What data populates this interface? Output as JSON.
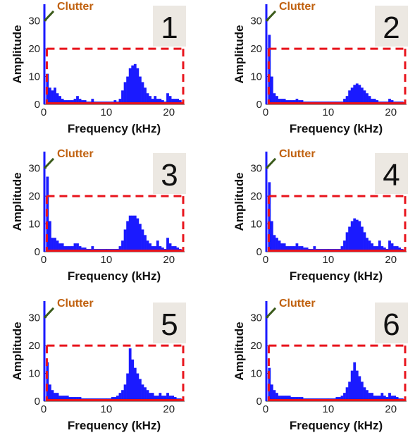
{
  "colors": {
    "bar": "#1a1aff",
    "clutter_line": "#1a1aff",
    "red": "#e8141c",
    "clutter_text": "#c0600e",
    "clutter_arrow": "#3a5a1a",
    "label_box": "#ece8e2"
  },
  "chart_data": [
    {
      "type": "bar",
      "panel_label": "1",
      "xlabel": "Frequency (kHz)",
      "ylabel": "Amplitude",
      "xlim": [
        0,
        22.5
      ],
      "ylim": [
        0,
        36
      ],
      "xticks": [
        0,
        10,
        20
      ],
      "yticks": [
        0,
        10,
        20,
        30
      ],
      "annotation": "Clutter",
      "clutter_amplitude": 36,
      "box_top": 20,
      "series": [
        {
          "x": [
            0.6,
            1.0,
            1.4,
            1.8,
            2.2,
            2.6,
            3.0,
            3.4,
            3.8,
            4.2,
            4.6,
            5.0,
            5.4,
            5.8,
            6.2,
            6.6,
            7.0,
            7.4,
            7.8,
            8.2,
            8.6,
            9.0,
            9.4,
            9.8,
            10.2,
            10.6,
            11.0,
            11.4,
            11.8,
            12.2,
            12.6,
            13.0,
            13.4,
            13.8,
            14.2,
            14.6,
            15.0,
            15.4,
            15.8,
            16.2,
            16.6,
            17.0,
            17.4,
            17.8,
            18.2,
            18.6,
            19.0,
            19.4,
            19.8,
            20.2,
            20.6,
            21.0,
            21.4,
            21.8
          ],
          "values": [
            11,
            6,
            5,
            6,
            4,
            3,
            2,
            1.5,
            1.5,
            1.5,
            1.5,
            2,
            3,
            2,
            1.5,
            1.5,
            1,
            1,
            2,
            1,
            1,
            1,
            1,
            1,
            1,
            1,
            1,
            1.5,
            1,
            2,
            5,
            8,
            10,
            13,
            14,
            14.5,
            13,
            10,
            8,
            6,
            4,
            3,
            2,
            3,
            2,
            2,
            1.5,
            1,
            4,
            3,
            2,
            2,
            2,
            1.5
          ]
        }
      ]
    },
    {
      "type": "bar",
      "panel_label": "2",
      "xlabel": "Frequency (kHz)",
      "ylabel": "Amplitude",
      "xlim": [
        0,
        22.5
      ],
      "ylim": [
        0,
        36
      ],
      "xticks": [
        0,
        10,
        20
      ],
      "yticks": [
        0,
        10,
        20,
        30
      ],
      "annotation": "Clutter",
      "clutter_amplitude": 36,
      "box_top": 20,
      "series": [
        {
          "x": [
            0.6,
            1.0,
            1.4,
            1.8,
            2.2,
            2.6,
            3.0,
            3.4,
            3.8,
            4.2,
            4.6,
            5.0,
            5.4,
            5.8,
            6.2,
            6.6,
            7.0,
            7.4,
            7.8,
            8.2,
            8.6,
            9.0,
            9.4,
            9.8,
            10.2,
            10.6,
            11.0,
            11.4,
            11.8,
            12.2,
            12.6,
            13.0,
            13.4,
            13.8,
            14.2,
            14.6,
            15.0,
            15.4,
            15.8,
            16.2,
            16.6,
            17.0,
            17.4,
            17.8,
            18.2,
            18.6,
            19.0,
            19.4,
            19.8,
            20.2,
            20.6,
            21.0,
            21.4,
            21.8
          ],
          "values": [
            25,
            10,
            4,
            3,
            2,
            2,
            2,
            1.5,
            1.5,
            1.5,
            1.5,
            2,
            1.5,
            1.5,
            1,
            1,
            1,
            1,
            1,
            1,
            1,
            1,
            1,
            1,
            1,
            1,
            1,
            1,
            1,
            1,
            2,
            3,
            5,
            6,
            7,
            7.5,
            7,
            6,
            5,
            4,
            3,
            2,
            2,
            1.5,
            1,
            1,
            1,
            1,
            2,
            1.5,
            1,
            1,
            1,
            1
          ]
        }
      ]
    },
    {
      "type": "bar",
      "panel_label": "3",
      "xlabel": "Frequency (kHz)",
      "ylabel": "Amplitude",
      "xlim": [
        0,
        22.5
      ],
      "ylim": [
        0,
        36
      ],
      "xticks": [
        0,
        10,
        20
      ],
      "yticks": [
        0,
        10,
        20,
        30
      ],
      "annotation": "Clutter",
      "clutter_amplitude": 36,
      "box_top": 20,
      "series": [
        {
          "x": [
            0.6,
            1.0,
            1.4,
            1.8,
            2.2,
            2.6,
            3.0,
            3.4,
            3.8,
            4.2,
            4.6,
            5.0,
            5.4,
            5.8,
            6.2,
            6.6,
            7.0,
            7.4,
            7.8,
            8.2,
            8.6,
            9.0,
            9.4,
            9.8,
            10.2,
            10.6,
            11.0,
            11.4,
            11.8,
            12.2,
            12.6,
            13.0,
            13.4,
            13.8,
            14.2,
            14.6,
            15.0,
            15.4,
            15.8,
            16.2,
            16.6,
            17.0,
            17.4,
            17.8,
            18.2,
            18.6,
            19.0,
            19.4,
            19.8,
            20.2,
            20.6,
            21.0,
            21.4,
            21.8
          ],
          "values": [
            27,
            11,
            5,
            5,
            4,
            3,
            3,
            2,
            2,
            2,
            2,
            3,
            3,
            2,
            1.5,
            1.5,
            1,
            1,
            2,
            1,
            1,
            1,
            1,
            1,
            1,
            1,
            1,
            1,
            1,
            2,
            4,
            8,
            11,
            13,
            13,
            13,
            12,
            10,
            8,
            6,
            4,
            3,
            2,
            2,
            4,
            2,
            1.5,
            1,
            5,
            3,
            2,
            2,
            1.5,
            1
          ]
        }
      ]
    },
    {
      "type": "bar",
      "panel_label": "4",
      "xlabel": "Frequency (kHz)",
      "ylabel": "Amplitude",
      "xlim": [
        0,
        22.5
      ],
      "ylim": [
        0,
        36
      ],
      "xticks": [
        0,
        10,
        20
      ],
      "yticks": [
        0,
        10,
        20,
        30
      ],
      "annotation": "Clutter",
      "clutter_amplitude": 36,
      "box_top": 20,
      "series": [
        {
          "x": [
            0.6,
            1.0,
            1.4,
            1.8,
            2.2,
            2.6,
            3.0,
            3.4,
            3.8,
            4.2,
            4.6,
            5.0,
            5.4,
            5.8,
            6.2,
            6.6,
            7.0,
            7.4,
            7.8,
            8.2,
            8.6,
            9.0,
            9.4,
            9.8,
            10.2,
            10.6,
            11.0,
            11.4,
            11.8,
            12.2,
            12.6,
            13.0,
            13.4,
            13.8,
            14.2,
            14.6,
            15.0,
            15.4,
            15.8,
            16.2,
            16.6,
            17.0,
            17.4,
            17.8,
            18.2,
            18.6,
            19.0,
            19.4,
            19.8,
            20.2,
            20.6,
            21.0,
            21.4,
            21.8
          ],
          "values": [
            25,
            11,
            6,
            5,
            4,
            3,
            3,
            2,
            2,
            2,
            2,
            3,
            2,
            2,
            1.5,
            1.5,
            1,
            1,
            2,
            1,
            1,
            1,
            1,
            1,
            1,
            1,
            1,
            1,
            1,
            2,
            4,
            7,
            9,
            11,
            12,
            11.5,
            11,
            9,
            7,
            5,
            4,
            3,
            2,
            2,
            4,
            2,
            1.5,
            1,
            4,
            3,
            2,
            2,
            1.5,
            1
          ]
        }
      ]
    },
    {
      "type": "bar",
      "panel_label": "5",
      "xlabel": "Frequency (kHz)",
      "ylabel": "Amplitude",
      "xlim": [
        0,
        22.5
      ],
      "ylim": [
        0,
        36
      ],
      "xticks": [
        0,
        10,
        20
      ],
      "yticks": [
        0,
        10,
        20,
        30
      ],
      "annotation": "Clutter",
      "clutter_amplitude": 36,
      "box_top": 20,
      "series": [
        {
          "x": [
            0.6,
            1.0,
            1.4,
            1.8,
            2.2,
            2.6,
            3.0,
            3.4,
            3.8,
            4.2,
            4.6,
            5.0,
            5.4,
            5.8,
            6.2,
            6.6,
            7.0,
            7.4,
            7.8,
            8.2,
            8.6,
            9.0,
            9.4,
            9.8,
            10.2,
            10.6,
            11.0,
            11.4,
            11.8,
            12.2,
            12.6,
            13.0,
            13.4,
            13.8,
            14.2,
            14.6,
            15.0,
            15.4,
            15.8,
            16.2,
            16.6,
            17.0,
            17.4,
            17.8,
            18.2,
            18.6,
            19.0,
            19.4,
            19.8,
            20.2,
            20.6,
            21.0,
            21.4,
            21.8
          ],
          "values": [
            14,
            6,
            4,
            3,
            3,
            2,
            2,
            2,
            2,
            1.5,
            1.5,
            1.5,
            1.5,
            1.5,
            1,
            1,
            1,
            1,
            1,
            1,
            1,
            1,
            1,
            1,
            1,
            1,
            1.5,
            1.5,
            2,
            3,
            4,
            6,
            10,
            19,
            15,
            12,
            10,
            8,
            6,
            5,
            4,
            3,
            3,
            2,
            2,
            3,
            2,
            2,
            3,
            2,
            2,
            1.5,
            1,
            1
          ]
        }
      ]
    },
    {
      "type": "bar",
      "panel_label": "6",
      "xlabel": "Frequency (kHz)",
      "ylabel": "Amplitude",
      "xlim": [
        0,
        22.5
      ],
      "ylim": [
        0,
        36
      ],
      "xticks": [
        0,
        10,
        20
      ],
      "yticks": [
        0,
        10,
        20,
        30
      ],
      "annotation": "Clutter",
      "clutter_amplitude": 36,
      "box_top": 20,
      "series": [
        {
          "x": [
            0.6,
            1.0,
            1.4,
            1.8,
            2.2,
            2.6,
            3.0,
            3.4,
            3.8,
            4.2,
            4.6,
            5.0,
            5.4,
            5.8,
            6.2,
            6.6,
            7.0,
            7.4,
            7.8,
            8.2,
            8.6,
            9.0,
            9.4,
            9.8,
            10.2,
            10.6,
            11.0,
            11.4,
            11.8,
            12.2,
            12.6,
            13.0,
            13.4,
            13.8,
            14.2,
            14.6,
            15.0,
            15.4,
            15.8,
            16.2,
            16.6,
            17.0,
            17.4,
            17.8,
            18.2,
            18.6,
            19.0,
            19.4,
            19.8,
            20.2,
            20.6,
            21.0,
            21.4,
            21.8
          ],
          "values": [
            12,
            6,
            4,
            3,
            2,
            2,
            2,
            2,
            2,
            1.5,
            1.5,
            1.5,
            1.5,
            1.5,
            1,
            1,
            1,
            1,
            1,
            1,
            1,
            1,
            1,
            1,
            1,
            1,
            1,
            1.5,
            1.5,
            2,
            3,
            5,
            7,
            11,
            14,
            11,
            9,
            7,
            5,
            4,
            3,
            3,
            2,
            2,
            2,
            3,
            2,
            1.5,
            3,
            2,
            2,
            1.5,
            1,
            1
          ]
        }
      ]
    }
  ]
}
